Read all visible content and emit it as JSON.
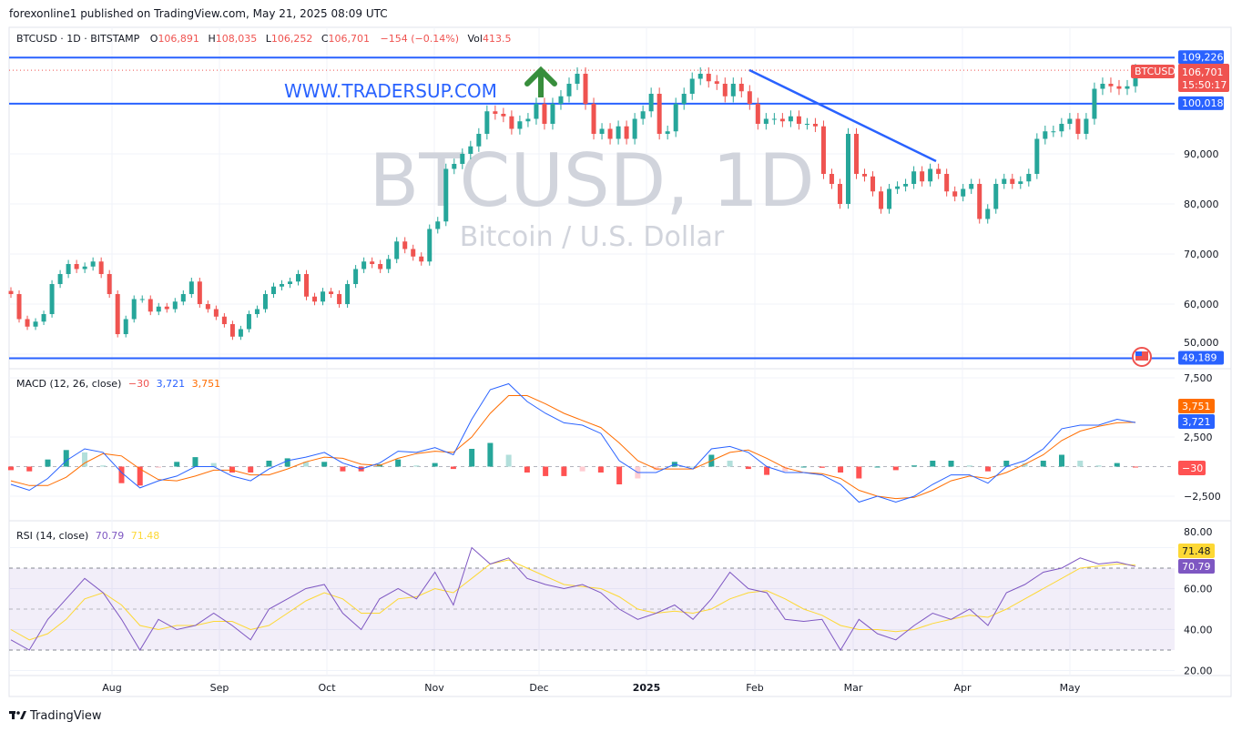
{
  "header": {
    "published": "forexonline1 published on TradingView.com, May 21, 2025 08:09 UTC",
    "symbol_line": "BTCUSD · 1D · BITSTAMP",
    "o_label": "O",
    "o": "106,891",
    "h_label": "H",
    "h": "108,035",
    "l_label": "L",
    "l": "106,252",
    "c_label": "C",
    "c": "106,701",
    "change": "−154 (−0.14%)",
    "vol_label": "Vol",
    "vol": "413.5"
  },
  "watermark": {
    "title": "BTCUSD, 1D",
    "subtitle": "Bitcoin / U.S. Dollar"
  },
  "annotation": {
    "text": "WWW.TRADERSUP.COM",
    "arrow_icon": "arrow-up-icon"
  },
  "colors": {
    "up": "#26a69a",
    "down": "#ef5350",
    "line": "#2962ff",
    "macd": "#2962ff",
    "signal": "#ff6d00",
    "rsi": "#7e57c2",
    "rsi_ma": "#fdd835",
    "arrow": "#388e3c"
  },
  "price_axis": {
    "ticks": [
      "90,000",
      "80,000",
      "70,000",
      "60,000",
      "50,000"
    ],
    "levels": [
      "109,226",
      "100,018",
      "49,189"
    ],
    "symbol_tag": "BTCUSD",
    "last_price": "106,701",
    "countdown": "15:50:17"
  },
  "time_axis": [
    "Aug",
    "Sep",
    "Oct",
    "Nov",
    "Dec",
    "2025",
    "Feb",
    "Mar",
    "Apr",
    "May"
  ],
  "macd": {
    "title": "MACD (12, 26, close)",
    "hist": "−30",
    "macd": "3,721",
    "signal": "3,751",
    "ticks": [
      "7,500",
      "2,500",
      "−2,500"
    ],
    "tag_signal": "3,751",
    "tag_macd": "3,721",
    "tag_hist": "−30"
  },
  "rsi": {
    "title": "RSI (14, close)",
    "rsi": "70.79",
    "ma": "71.48",
    "ticks": [
      "80.00",
      "60.00",
      "40.00",
      "20.00"
    ],
    "tag_ma": "71.48",
    "tag_rsi": "70.79"
  },
  "footer": {
    "brand": "TradingView"
  },
  "chart_data": [
    {
      "type": "candlestick",
      "title": "BTCUSD · 1D · BITSTAMP",
      "x_ticks": [
        "Aug",
        "Sep",
        "Oct",
        "Nov",
        "Dec",
        "2025",
        "Feb",
        "Mar",
        "Apr",
        "May"
      ],
      "ylim": [
        48000,
        113000
      ],
      "grid": true,
      "horizontal_levels": [
        109226,
        100018,
        49189
      ],
      "last": 106701,
      "closes": [
        62000,
        57000,
        55500,
        56500,
        58000,
        64000,
        66000,
        68000,
        67000,
        67500,
        68500,
        66000,
        62000,
        54000,
        57000,
        61000,
        61000,
        58500,
        59500,
        59000,
        60500,
        62000,
        64500,
        60000,
        59000,
        57500,
        56000,
        53500,
        55000,
        58000,
        59000,
        62000,
        63500,
        64000,
        64500,
        66000,
        61500,
        60500,
        62500,
        62000,
        60000,
        64000,
        67000,
        68500,
        68000,
        67000,
        69000,
        72500,
        71000,
        69500,
        68500,
        75000,
        76500,
        87000,
        88000,
        90000,
        91500,
        94000,
        98500,
        98000,
        97500,
        95000,
        96500,
        97000,
        100000,
        96000,
        100000,
        101500,
        104000,
        106000,
        100000,
        94000,
        95000,
        93000,
        95500,
        93000,
        97000,
        98500,
        102000,
        94000,
        94500,
        100000,
        102000,
        105000,
        106000,
        104500,
        104000,
        101500,
        104000,
        102500,
        100000,
        96000,
        97000,
        97000,
        96500,
        97500,
        96000,
        96000,
        95500,
        86000,
        84000,
        80000,
        94000,
        86000,
        85500,
        82500,
        79000,
        83000,
        83500,
        84000,
        86500,
        84500,
        87000,
        86000,
        82500,
        81500,
        83000,
        84000,
        77000,
        79000,
        84000,
        85000,
        84000,
        84500,
        86000,
        93000,
        94500,
        94500,
        96000,
        97000,
        94000,
        97000,
        103000,
        104000,
        103500,
        103000,
        103500,
        106701
      ]
    },
    {
      "type": "line",
      "title": "MACD (12, 26, close)",
      "ylim": [
        -5000,
        9000
      ],
      "series": [
        {
          "name": "MACD",
          "values": [
            -1500,
            -2000,
            -1000,
            500,
            1500,
            1200,
            -500,
            -1800,
            -1200,
            -800,
            0,
            0,
            -800,
            -1200,
            -200,
            500,
            800,
            1200,
            300,
            -200,
            300,
            1300,
            1200,
            1600,
            1000,
            4000,
            6500,
            7000,
            5500,
            4500,
            3700,
            3500,
            2800,
            500,
            -500,
            -500,
            200,
            -200,
            1500,
            1700,
            1200,
            0,
            -500,
            -500,
            -700,
            -1500,
            -3000,
            -2500,
            -3000,
            -2500,
            -1500,
            -700,
            -700,
            -1400,
            0,
            500,
            1500,
            3200,
            3500,
            3500,
            4000,
            3721
          ]
        },
        {
          "name": "Signal",
          "values": [
            -1200,
            -1600,
            -1600,
            -900,
            300,
            1100,
            900,
            -200,
            -1100,
            -1200,
            -800,
            -300,
            -300,
            -700,
            -700,
            -200,
            400,
            800,
            700,
            200,
            100,
            700,
            1100,
            1300,
            1200,
            2500,
            4500,
            6000,
            6000,
            5300,
            4500,
            3900,
            3300,
            2000,
            500,
            -200,
            -200,
            -200,
            500,
            1200,
            1400,
            700,
            -100,
            -500,
            -600,
            -1000,
            -2000,
            -2500,
            -2700,
            -2600,
            -2000,
            -1200,
            -800,
            -1000,
            -500,
            200,
            1000,
            2200,
            3000,
            3400,
            3700,
            3751
          ]
        }
      ]
    },
    {
      "type": "line",
      "title": "RSI (14, close)",
      "ylim": [
        15,
        85
      ],
      "bands": [
        30,
        50,
        70
      ],
      "series": [
        {
          "name": "RSI",
          "values": [
            35,
            30,
            45,
            55,
            65,
            58,
            45,
            30,
            45,
            40,
            42,
            48,
            42,
            35,
            50,
            55,
            60,
            62,
            48,
            40,
            55,
            60,
            55,
            68,
            52,
            80,
            72,
            75,
            65,
            62,
            60,
            62,
            58,
            50,
            45,
            48,
            52,
            45,
            55,
            68,
            60,
            58,
            45,
            44,
            45,
            30,
            45,
            38,
            35,
            42,
            48,
            45,
            50,
            42,
            58,
            62,
            68,
            70,
            75,
            72,
            73,
            70.79
          ]
        },
        {
          "name": "MA",
          "values": [
            40,
            35,
            38,
            45,
            55,
            58,
            52,
            42,
            40,
            42,
            42,
            44,
            44,
            40,
            42,
            48,
            54,
            58,
            55,
            48,
            48,
            55,
            56,
            60,
            58,
            65,
            72,
            74,
            70,
            66,
            62,
            61,
            60,
            56,
            50,
            48,
            49,
            48,
            50,
            55,
            58,
            59,
            55,
            50,
            47,
            42,
            40,
            40,
            39,
            40,
            43,
            45,
            47,
            46,
            50,
            55,
            60,
            65,
            70,
            71,
            72,
            71.48
          ]
        }
      ]
    }
  ]
}
